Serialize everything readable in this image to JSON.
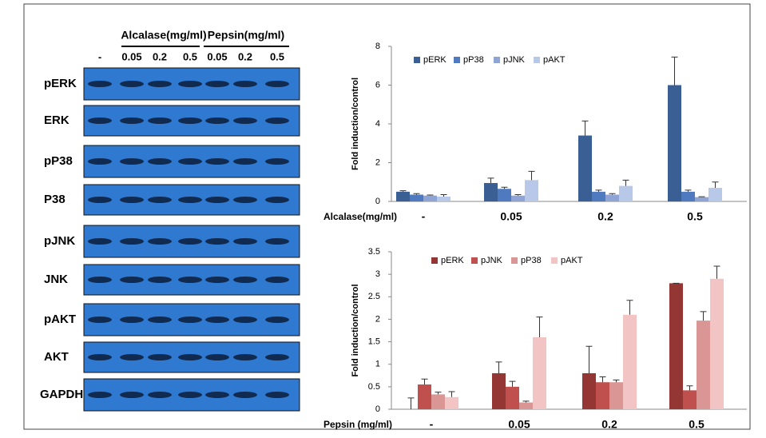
{
  "blot": {
    "groups": [
      "Alcalase(mg/ml)",
      "Pepsin(mg/ml)"
    ],
    "lanes": [
      "-",
      "0.05",
      "0.2",
      "0.5",
      "0.05",
      "0.2",
      "0.5"
    ],
    "rows": [
      "pERK",
      "ERK",
      "pP38",
      "P38",
      "pJNK",
      "JNK",
      "pAKT",
      "AKT",
      "GAPDH"
    ]
  },
  "chart_data": [
    {
      "type": "bar",
      "y_label": "Fold induction/control",
      "x_label": "Alcalase(mg/ml)",
      "categories": [
        "-",
        "0.05",
        "0.2",
        "0.5"
      ],
      "series": [
        {
          "name": "pERK",
          "color": "#3a5f94",
          "values": [
            0.5,
            0.95,
            3.4,
            6.0
          ],
          "errors": [
            0.05,
            0.25,
            0.75,
            1.45
          ]
        },
        {
          "name": "pP38",
          "color": "#4f7ac0",
          "values": [
            0.35,
            0.65,
            0.5,
            0.5
          ],
          "errors": [
            0.05,
            0.08,
            0.08,
            0.08
          ]
        },
        {
          "name": "pJNK",
          "color": "#8ea4d4",
          "values": [
            0.3,
            0.3,
            0.35,
            0.22
          ],
          "errors": [
            0.03,
            0.05,
            0.05,
            0.02
          ]
        },
        {
          "name": "pAKT",
          "color": "#b8c8e8",
          "values": [
            0.25,
            1.1,
            0.8,
            0.7
          ],
          "errors": [
            0.1,
            0.45,
            0.3,
            0.3
          ]
        }
      ],
      "ylim": [
        0,
        8
      ],
      "yticks": [
        0,
        2,
        4,
        6,
        8
      ],
      "legend": "top"
    },
    {
      "type": "bar",
      "y_label": "Fold induction/control",
      "x_label": "Pepsin (mg/ml)",
      "categories": [
        "-",
        "0.05",
        "0.2",
        "0.5"
      ],
      "series": [
        {
          "name": "pERK",
          "color": "#943634",
          "values": [
            0,
            0.8,
            0.8,
            2.8
          ],
          "errors": [
            0.25,
            0.25,
            0.6,
            0
          ]
        },
        {
          "name": "pJNK",
          "color": "#c0504d",
          "values": [
            0.55,
            0.5,
            0.6,
            0.42
          ],
          "errors": [
            0.12,
            0.12,
            0.12,
            0.1
          ]
        },
        {
          "name": "pP38",
          "color": "#d99694",
          "values": [
            0.33,
            0.15,
            0.6,
            1.97
          ],
          "errors": [
            0.05,
            0.03,
            0.05,
            0.2
          ]
        },
        {
          "name": "pAKT",
          "color": "#f2c4c4",
          "values": [
            0.27,
            1.6,
            2.1,
            2.9
          ],
          "errors": [
            0.12,
            0.45,
            0.32,
            0.28
          ]
        }
      ],
      "ylim": [
        0,
        3.5
      ],
      "yticks": [
        0,
        0.5,
        1,
        1.5,
        2,
        2.5,
        3,
        3.5
      ],
      "legend": "top"
    }
  ]
}
